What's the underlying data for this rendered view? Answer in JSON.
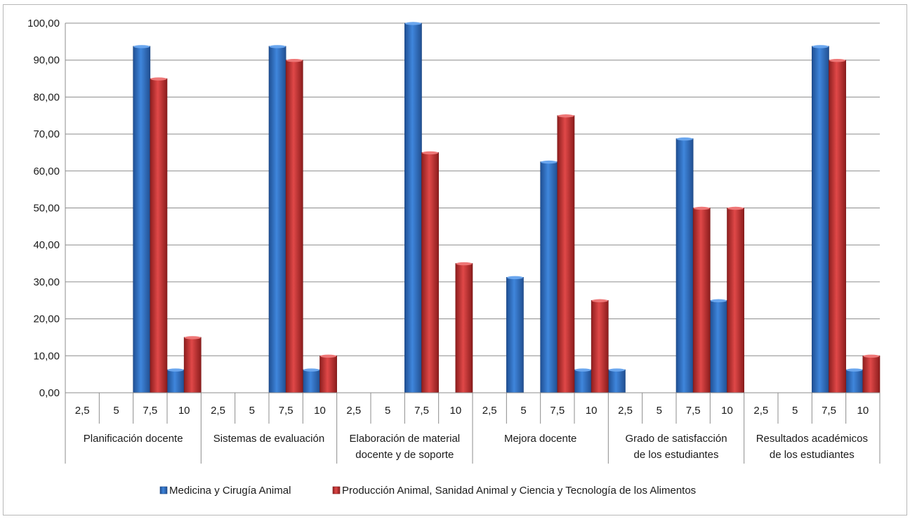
{
  "chart_data": {
    "type": "bar",
    "ylim": [
      0,
      100
    ],
    "y_ticks": [
      "0,00",
      "10,00",
      "20,00",
      "30,00",
      "40,00",
      "50,00",
      "60,00",
      "70,00",
      "80,00",
      "90,00",
      "100,00"
    ],
    "grid": "horizontal",
    "legend_position": "bottom",
    "groups": [
      {
        "label_lines": [
          "Planificación docente"
        ],
        "subcategories": [
          "2,5",
          "5",
          "7,5",
          "10"
        ]
      },
      {
        "label_lines": [
          "Sistemas de evaluación"
        ],
        "subcategories": [
          "2,5",
          "5",
          "7,5",
          "10"
        ]
      },
      {
        "label_lines": [
          "Elaboración de material",
          "docente y de soporte"
        ],
        "subcategories": [
          "2,5",
          "5",
          "7,5",
          "10"
        ]
      },
      {
        "label_lines": [
          "Mejora docente"
        ],
        "subcategories": [
          "2,5",
          "5",
          "7,5",
          "10"
        ]
      },
      {
        "label_lines": [
          "Grado de satisfacción",
          "de los estudiantes"
        ],
        "subcategories": [
          "2,5",
          "5",
          "7,5",
          "10"
        ]
      },
      {
        "label_lines": [
          "Resultados académicos",
          "de los estudiantes"
        ],
        "subcategories": [
          "2,5",
          "5",
          "7,5",
          "10"
        ]
      }
    ],
    "series": [
      {
        "name": "Medicina y Cirugía Animal",
        "color": "#2e6fc4",
        "values": [
          [
            0,
            0,
            93.75,
            6.25
          ],
          [
            0,
            0,
            93.75,
            6.25
          ],
          [
            0,
            0,
            100,
            0
          ],
          [
            0,
            31.25,
            62.5,
            6.25
          ],
          [
            6.25,
            0,
            68.75,
            25
          ],
          [
            0,
            0,
            93.75,
            6.25
          ]
        ]
      },
      {
        "name": "Producción Animal, Sanidad Animal y Ciencia y Tecnología de los Alimentos",
        "color": "#c83232",
        "values": [
          [
            0,
            0,
            85,
            15
          ],
          [
            0,
            0,
            90,
            10
          ],
          [
            0,
            0,
            65,
            35
          ],
          [
            0,
            0,
            75,
            25
          ],
          [
            0,
            0,
            50,
            50
          ],
          [
            0,
            0,
            90,
            10
          ]
        ]
      }
    ]
  }
}
